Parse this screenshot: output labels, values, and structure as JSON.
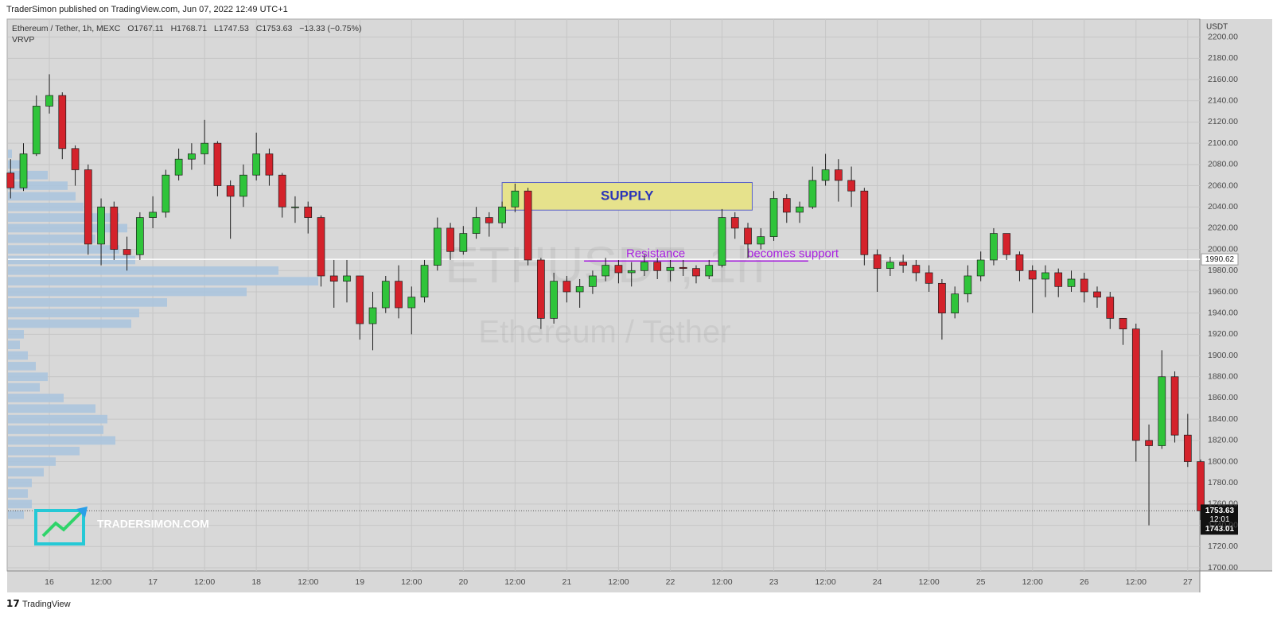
{
  "header": {
    "publisher": "TraderSimon published on TradingView.com, Jun 07, 2022 12:49 UTC+1"
  },
  "footer": {
    "brand": "TradingView"
  },
  "chart_data": {
    "type": "candlestick",
    "symbol": "Ethereum / Tether, 1h, MEXC",
    "legend_values": [
      "O1767.11",
      "H1768.71",
      "L1747.53",
      "C1753.63",
      "−13.33 (−0.75%)"
    ],
    "indicator": "VRVP",
    "y_unit": "USDT",
    "watermark": [
      "ETHUSDT, 1h",
      "Ethereum / Tether"
    ],
    "logo": "TRADERSIMON.COM",
    "up_color": "#2fc43a",
    "down_color": "#d4222b",
    "grid": true,
    "x": [
      "15 15:00",
      "15 18:00",
      "15 21:00",
      "16 00:00",
      "16 03:00",
      "16 06:00",
      "16 09:00",
      "16 12:00",
      "16 15:00",
      "16 18:00",
      "16 21:00",
      "17 00:00",
      "17 03:00",
      "17 06:00",
      "17 09:00",
      "17 12:00",
      "17 15:00",
      "17 18:00",
      "17 21:00",
      "18 00:00",
      "18 03:00",
      "18 06:00",
      "18 09:00",
      "18 12:00",
      "18 15:00",
      "18 18:00",
      "18 21:00",
      "19 00:00",
      "19 03:00",
      "19 06:00",
      "19 09:00",
      "19 12:00",
      "19 15:00",
      "19 18:00",
      "19 21:00",
      "20 00:00",
      "20 03:00",
      "20 06:00",
      "20 09:00",
      "20 12:00",
      "20 15:00",
      "20 18:00",
      "20 21:00",
      "21 00:00",
      "21 03:00",
      "21 06:00",
      "21 09:00",
      "21 12:00",
      "21 15:00",
      "21 18:00",
      "21 21:00",
      "22 00:00",
      "22 03:00",
      "22 06:00",
      "22 09:00",
      "22 12:00",
      "22 15:00",
      "22 18:00",
      "22 21:00",
      "23 00:00",
      "23 03:00",
      "23 06:00",
      "23 09:00",
      "23 12:00",
      "23 15:00",
      "23 18:00",
      "23 21:00",
      "24 00:00",
      "24 03:00",
      "24 06:00",
      "24 09:00",
      "24 12:00",
      "24 15:00",
      "24 18:00",
      "24 21:00",
      "25 00:00",
      "25 03:00",
      "25 06:00",
      "25 09:00",
      "25 12:00",
      "25 15:00",
      "25 18:00",
      "25 21:00",
      "26 00:00",
      "26 03:00",
      "26 06:00",
      "26 09:00",
      "26 12:00",
      "26 15:00",
      "26 18:00",
      "26 21:00",
      "27 00:00",
      "27 03:00"
    ],
    "open": [
      2072,
      2058,
      2090,
      2135,
      2145,
      2095,
      2075,
      2005,
      2040,
      2000,
      1995,
      2030,
      2035,
      2070,
      2085,
      2090,
      2100,
      2060,
      2050,
      2070,
      2090,
      2070,
      2040,
      2040,
      2030,
      1975,
      1970,
      1975,
      1930,
      1945,
      1970,
      1945,
      1955,
      1985,
      2020,
      1998,
      2015,
      2030,
      2025,
      2040,
      2055,
      1990,
      1935,
      1970,
      1960,
      1965,
      1975,
      1985,
      1978,
      1980,
      1988,
      1980,
      1983,
      1982,
      1975,
      1985,
      2030,
      2020,
      2005,
      2012,
      2048,
      2035,
      2040,
      2065,
      2075,
      2065,
      2055,
      1995,
      1982,
      1988,
      1985,
      1978,
      1968,
      1940,
      1958,
      1975,
      1990,
      2015,
      1995,
      1980,
      1972,
      1978,
      1965,
      1972,
      1960,
      1955,
      1935,
      1925,
      1820,
      1815,
      1880,
      1825,
      1800
    ],
    "high": [
      2085,
      2100,
      2145,
      2165,
      2148,
      2098,
      2080,
      2048,
      2045,
      2012,
      2035,
      2050,
      2075,
      2095,
      2100,
      2122,
      2102,
      2065,
      2080,
      2110,
      2095,
      2072,
      2050,
      2045,
      2032,
      1990,
      1990,
      1975,
      1960,
      1975,
      1985,
      1965,
      1990,
      2030,
      2025,
      2022,
      2040,
      2035,
      2045,
      2062,
      2058,
      1992,
      1978,
      1975,
      1972,
      1980,
      1992,
      1990,
      1988,
      1995,
      1992,
      1990,
      1990,
      1985,
      1990,
      2038,
      2035,
      2025,
      2020,
      2055,
      2052,
      2045,
      2078,
      2090,
      2085,
      2078,
      2058,
      2000,
      1993,
      1995,
      1990,
      1985,
      1972,
      1965,
      1985,
      1998,
      2020,
      2015,
      1998,
      1985,
      1985,
      1982,
      1980,
      1978,
      1965,
      1960,
      1935,
      1930,
      1835,
      1905,
      1885,
      1845,
      1802
    ],
    "low": [
      2048,
      2055,
      2088,
      2128,
      2085,
      2060,
      1995,
      1985,
      1990,
      1980,
      1990,
      2020,
      2030,
      2065,
      2075,
      2080,
      2050,
      2010,
      2040,
      2065,
      2060,
      2030,
      2025,
      2015,
      1965,
      1945,
      1950,
      1915,
      1905,
      1940,
      1935,
      1920,
      1950,
      1980,
      1990,
      1995,
      2010,
      2012,
      2020,
      2035,
      1985,
      1925,
      1930,
      1950,
      1945,
      1958,
      1970,
      1968,
      1965,
      1975,
      1972,
      1970,
      1975,
      1968,
      1972,
      1983,
      2010,
      1992,
      2000,
      2008,
      2025,
      2025,
      2038,
      2060,
      2045,
      2040,
      1985,
      1960,
      1975,
      1978,
      1970,
      1960,
      1915,
      1935,
      1950,
      1970,
      1985,
      1990,
      1970,
      1940,
      1955,
      1955,
      1960,
      1950,
      1945,
      1925,
      1910,
      1800,
      1740,
      1812,
      1818,
      1795,
      1745
    ],
    "close": [
      2058,
      2090,
      2135,
      2145,
      2095,
      2075,
      2005,
      2040,
      2000,
      1995,
      2030,
      2035,
      2070,
      2085,
      2090,
      2100,
      2060,
      2050,
      2070,
      2090,
      2070,
      2040,
      2040,
      2030,
      1975,
      1970,
      1975,
      1930,
      1945,
      1970,
      1945,
      1955,
      1985,
      2020,
      1998,
      2015,
      2030,
      2025,
      2040,
      2055,
      1990,
      1935,
      1970,
      1960,
      1965,
      1975,
      1985,
      1978,
      1980,
      1988,
      1980,
      1983,
      1982,
      1975,
      1985,
      2030,
      2020,
      2005,
      2012,
      2048,
      2035,
      2040,
      2065,
      2075,
      2065,
      2055,
      1995,
      1982,
      1988,
      1985,
      1978,
      1968,
      1940,
      1958,
      1975,
      1990,
      2015,
      1995,
      1980,
      1972,
      1978,
      1965,
      1972,
      1960,
      1955,
      1935,
      1925,
      1820,
      1815,
      1880,
      1825,
      1800,
      1753.63
    ],
    "xlim": [
      "15 14:24",
      "27 02:48"
    ],
    "xticks": [
      {
        "value": "16 00:00",
        "label": "16"
      },
      {
        "value": "16 12:00",
        "label": "12:00"
      },
      {
        "value": "17 00:00",
        "label": "17"
      },
      {
        "value": "17 12:00",
        "label": "12:00"
      },
      {
        "value": "18 00:00",
        "label": "18"
      },
      {
        "value": "18 12:00",
        "label": "12:00"
      },
      {
        "value": "19 00:00",
        "label": "19"
      },
      {
        "value": "19 12:00",
        "label": "12:00"
      },
      {
        "value": "20 00:00",
        "label": "20"
      },
      {
        "value": "20 12:00",
        "label": "12:00"
      },
      {
        "value": "21 00:00",
        "label": "21"
      },
      {
        "value": "21 12:00",
        "label": "12:00"
      },
      {
        "value": "22 00:00",
        "label": "22"
      },
      {
        "value": "22 12:00",
        "label": "12:00"
      },
      {
        "value": "23 00:00",
        "label": "23"
      },
      {
        "value": "23 12:00",
        "label": "12:00"
      },
      {
        "value": "24 00:00",
        "label": "24"
      },
      {
        "value": "24 12:00",
        "label": "12:00"
      },
      {
        "value": "25 00:00",
        "label": "25"
      },
      {
        "value": "25 12:00",
        "label": "12:00"
      },
      {
        "value": "26 00:00",
        "label": "26"
      },
      {
        "value": "26 12:00",
        "label": "12:00"
      },
      {
        "value": "27 00:00",
        "label": "27"
      }
    ],
    "ylim": [
      1697,
      2217
    ],
    "yticks": [
      {
        "value": 1700,
        "label": "1700.00"
      },
      {
        "value": 1720,
        "label": "1720.00"
      },
      {
        "value": 1740,
        "label": "1740.00"
      },
      {
        "value": 1760,
        "label": "1760.00"
      },
      {
        "value": 1780,
        "label": "1780.00"
      },
      {
        "value": 1800,
        "label": "1800.00"
      },
      {
        "value": 1820,
        "label": "1820.00"
      },
      {
        "value": 1840,
        "label": "1840.00"
      },
      {
        "value": 1860,
        "label": "1860.00"
      },
      {
        "value": 1880,
        "label": "1880.00"
      },
      {
        "value": 1900,
        "label": "1900.00"
      },
      {
        "value": 1920,
        "label": "1920.00"
      },
      {
        "value": 1940,
        "label": "1940.00"
      },
      {
        "value": 1960,
        "label": "1960.00"
      },
      {
        "value": 1980,
        "label": "1980.00"
      },
      {
        "value": 2000,
        "label": "2000.00"
      },
      {
        "value": 2020,
        "label": "2020.00"
      },
      {
        "value": 2040,
        "label": "2040.00"
      },
      {
        "value": 2060,
        "label": "2060.00"
      },
      {
        "value": 2080,
        "label": "2080.00"
      },
      {
        "value": 2100,
        "label": "2100.00"
      },
      {
        "value": 2120,
        "label": "2120.00"
      },
      {
        "value": 2140,
        "label": "2140.00"
      },
      {
        "value": 2160,
        "label": "2160.00"
      },
      {
        "value": 2180,
        "label": "2180.00"
      },
      {
        "value": 2200,
        "label": "2200.00"
      }
    ],
    "volume_profile": {
      "color": "#a9c4de",
      "prices": [
        2090,
        2080,
        2070,
        2060,
        2050,
        2040,
        2030,
        2020,
        2010,
        2000,
        1990,
        1980,
        1970,
        1960,
        1950,
        1940,
        1930,
        1920,
        1910,
        1900,
        1890,
        1880,
        1870,
        1860,
        1850,
        1840,
        1830,
        1820,
        1810,
        1800,
        1790,
        1780,
        1770,
        1760,
        1750
      ],
      "values": [
        5,
        20,
        50,
        75,
        85,
        95,
        140,
        150,
        110,
        140,
        160,
        340,
        390,
        300,
        200,
        165,
        155,
        20,
        15,
        25,
        35,
        50,
        40,
        70,
        110,
        125,
        120,
        135,
        90,
        60,
        45,
        30,
        25,
        30,
        20
      ]
    },
    "supply_zone": {
      "label": "SUPPLY",
      "from": "20 09:00",
      "to": "22 19:00",
      "low": 2037,
      "high": 2063,
      "color": "#e6e28c"
    },
    "resistance_line": {
      "labels": [
        "Resistance",
        "becomes support"
      ],
      "from": "21 04:00",
      "to": "23 08:00",
      "value": 1989,
      "color": "#a922e0"
    },
    "horizontal_line": 1990.62,
    "last_price": 1753.63,
    "countdown": "12:01",
    "bar_low": 1743.01
  }
}
